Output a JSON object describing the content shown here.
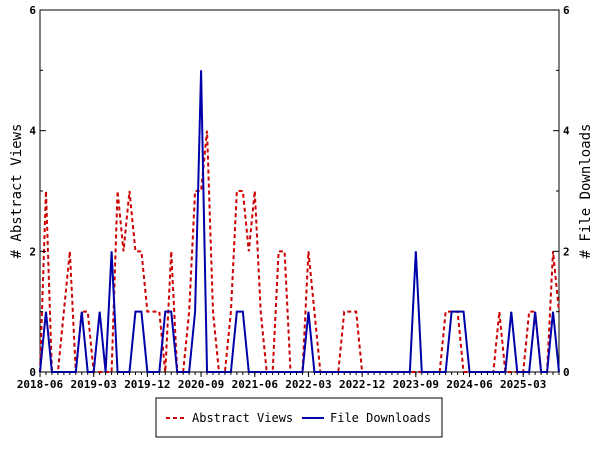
{
  "chart_data": {
    "type": "line",
    "title": "",
    "ylabel_left": "# Abstract Views",
    "ylabel_right": "# File Downloads",
    "ylim": [
      0,
      6
    ],
    "y_ticks": [
      "0",
      "2",
      "4",
      "6"
    ],
    "x_ticks": [
      {
        "label": "2018-06",
        "index": 0
      },
      {
        "label": "2019-03",
        "index": 9
      },
      {
        "label": "2019-12",
        "index": 18
      },
      {
        "label": "2020-09",
        "index": 27
      },
      {
        "label": "2021-06",
        "index": 36
      },
      {
        "label": "2022-03",
        "index": 45
      },
      {
        "label": "2022-12",
        "index": 54
      },
      {
        "label": "2023-09",
        "index": 63
      },
      {
        "label": "2024-06",
        "index": 72
      },
      {
        "label": "2025-03",
        "index": 81
      }
    ],
    "x_start": "2018-06",
    "x_end": "2025-09",
    "grid": false,
    "legend_position": "bottom",
    "series": [
      {
        "name": "Abstract Views",
        "color": "#cc0000",
        "style": "dashed",
        "values": [
          0,
          3,
          0,
          0,
          1,
          2,
          0,
          1,
          1,
          0,
          0,
          0,
          0,
          3,
          2,
          3,
          2,
          2,
          1,
          1,
          1,
          0,
          2,
          0,
          0,
          1,
          3,
          3,
          4,
          1,
          0,
          0,
          1,
          3,
          3,
          2,
          3,
          1,
          0,
          0,
          2,
          2,
          0,
          0,
          0,
          2,
          1,
          0,
          0,
          0,
          0,
          1,
          1,
          1,
          0,
          0,
          0,
          0,
          0,
          0,
          0,
          0,
          0,
          0,
          0,
          0,
          0,
          0,
          1,
          1,
          1,
          0,
          0,
          0,
          0,
          0,
          0,
          1,
          0,
          0,
          0,
          0,
          1,
          1,
          0,
          0,
          2,
          1
        ]
      },
      {
        "name": "File Downloads",
        "color": "#0000aa",
        "style": "solid",
        "values": [
          0,
          1,
          0,
          0,
          0,
          0,
          0,
          1,
          0,
          0,
          1,
          0,
          2,
          0,
          0,
          0,
          1,
          1,
          0,
          0,
          0,
          1,
          1,
          0,
          0,
          0,
          1,
          5,
          0,
          0,
          0,
          0,
          0,
          1,
          1,
          0,
          0,
          0,
          0,
          0,
          0,
          0,
          0,
          0,
          0,
          1,
          0,
          0,
          0,
          0,
          0,
          0,
          0,
          0,
          0,
          0,
          0,
          0,
          0,
          0,
          0,
          0,
          0,
          2,
          0,
          0,
          0,
          0,
          0,
          1,
          1,
          1,
          0,
          0,
          0,
          0,
          0,
          0,
          0,
          1,
          0,
          0,
          0,
          1,
          0,
          0,
          1,
          0
        ]
      }
    ]
  },
  "legend": {
    "items": [
      {
        "label": "Abstract Views",
        "color": "#cc0000",
        "style": "dashed"
      },
      {
        "label": "File Downloads",
        "color": "#0000aa",
        "style": "solid"
      }
    ]
  }
}
